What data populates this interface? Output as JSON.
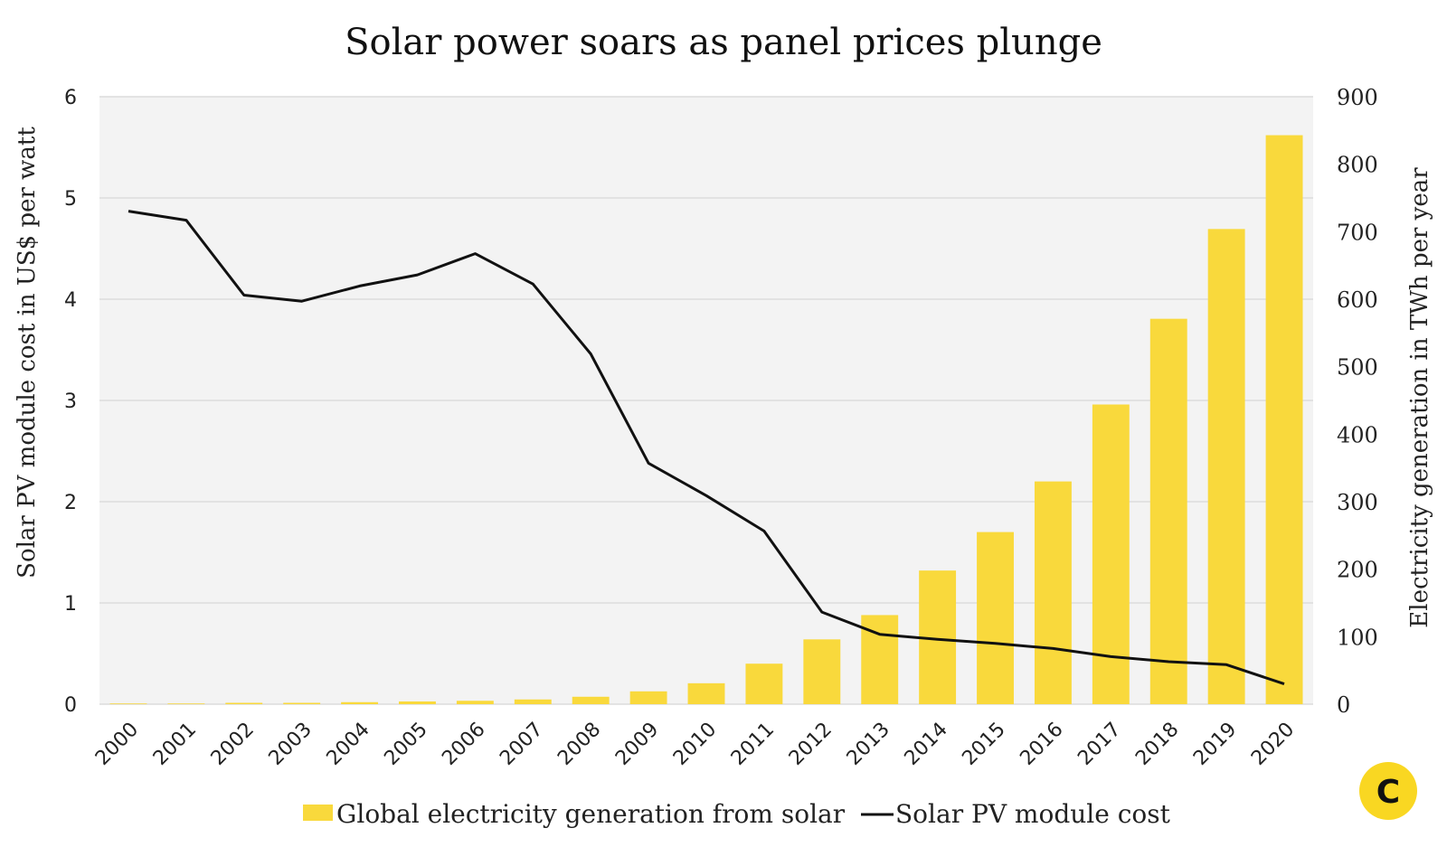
{
  "chart_data": {
    "type": "bar+line",
    "title": "Solar power soars as panel prices plunge",
    "categories": [
      "2000",
      "2001",
      "2002",
      "2003",
      "2004",
      "2005",
      "2006",
      "2007",
      "2008",
      "2009",
      "2010",
      "2011",
      "2012",
      "2013",
      "2014",
      "2015",
      "2016",
      "2017",
      "2018",
      "2019",
      "2020"
    ],
    "series": [
      {
        "name": "Global electricity generation from solar",
        "type": "bar",
        "axis": "right",
        "color": "#f9d93c",
        "values": [
          1,
          1,
          2,
          2,
          3,
          4,
          5,
          7,
          11,
          19,
          31,
          60,
          96,
          132,
          198,
          255,
          330,
          444,
          571,
          704,
          843
        ]
      },
      {
        "name": "Solar PV module cost",
        "type": "line",
        "axis": "left",
        "color": "#111111",
        "values": [
          4.87,
          4.78,
          4.04,
          3.98,
          4.13,
          4.24,
          4.45,
          4.15,
          3.46,
          2.38,
          2.06,
          1.71,
          0.91,
          0.69,
          0.64,
          0.6,
          0.55,
          0.47,
          0.42,
          0.39,
          0.2
        ]
      }
    ],
    "ylabel_left": "Solar PV module cost in US$ per watt",
    "ylabel_right": "Electricity generation in TWh per year",
    "ylim_left": [
      0,
      6
    ],
    "ylim_right": [
      0,
      900
    ],
    "yticks_left": [
      "0",
      "1",
      "2",
      "3",
      "4",
      "5",
      "6"
    ],
    "yticks_right": [
      "0",
      "100",
      "200",
      "300",
      "400",
      "500",
      "600",
      "700",
      "800",
      "900"
    ],
    "grid": true,
    "legend_position": "bottom",
    "background": "#f3f3f3"
  },
  "logo": {
    "letter": "C",
    "color": "#f9d722"
  }
}
